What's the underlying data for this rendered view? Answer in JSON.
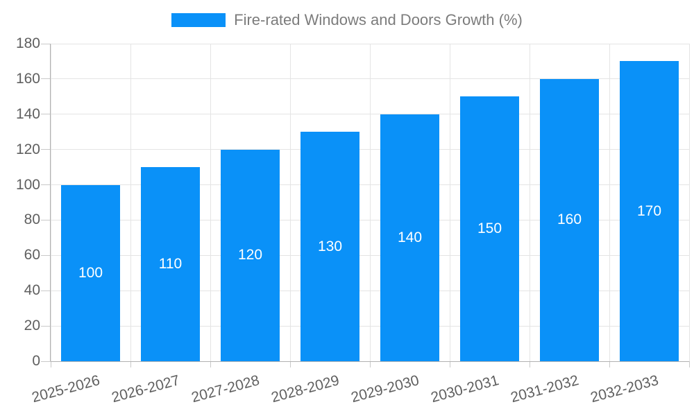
{
  "legend": {
    "label": "Fire-rated Windows and Doors Growth (%)",
    "swatch_color": "#0a91f8"
  },
  "chart_data": {
    "type": "bar",
    "title": "Fire-rated Windows and Doors Growth (%)",
    "categories": [
      "2025-2026",
      "2026-2027",
      "2027-2028",
      "2028-2029",
      "2029-2030",
      "2030-2031",
      "2031-2032",
      "2032-2033"
    ],
    "values": [
      100,
      110,
      120,
      130,
      140,
      150,
      160,
      170
    ],
    "bar_value_labels": [
      "100",
      "110",
      "120",
      "130",
      "140",
      "150",
      "160",
      "170"
    ],
    "xlabel": "",
    "ylabel": "",
    "ylim": [
      0,
      180
    ],
    "yticks": [
      0,
      20,
      40,
      60,
      80,
      100,
      120,
      140,
      160,
      180
    ],
    "grid": true,
    "legend_position": "top-center",
    "bar_color": "#0a91f8",
    "value_label_color": "#ffffff",
    "axis_label_color": "#5f5f5f",
    "gridline_color": "#e4e4e4",
    "axis_line_color": "#b1b1b1",
    "title_color": "#7c7c7c"
  }
}
